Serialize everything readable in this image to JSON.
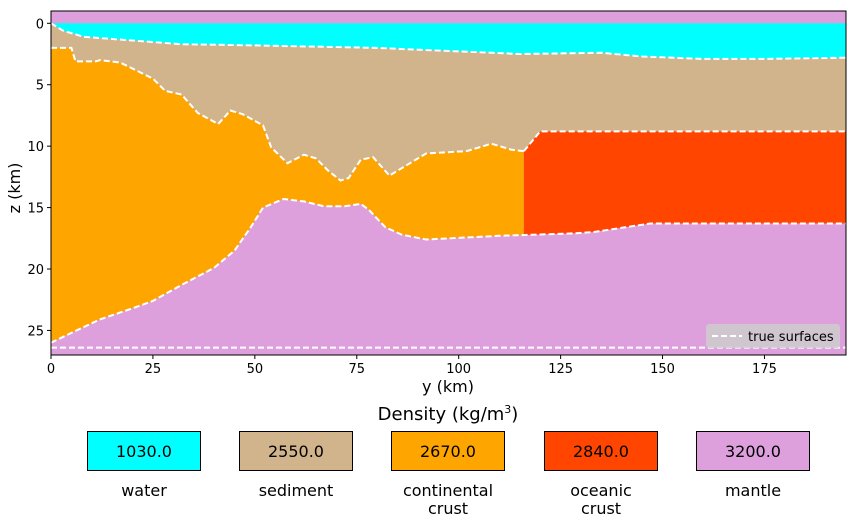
{
  "chart_data": {
    "type": "area",
    "xlabel": "y (km)",
    "ylabel": "z (km)",
    "xlim": [
      0,
      195
    ],
    "ylim": [
      27,
      -1
    ],
    "xticks": [
      0,
      25,
      50,
      75,
      100,
      125,
      150,
      175
    ],
    "yticks": [
      0,
      5,
      10,
      15,
      20,
      25
    ],
    "legend": {
      "label": "true surfaces",
      "position": "lower-right"
    },
    "surfaces": {
      "water_bottom": {
        "x": [
          0,
          3,
          8,
          20,
          32,
          50,
          80,
          115,
          135,
          145,
          160,
          175,
          195
        ],
        "z": [
          0,
          0.6,
          1.1,
          1.4,
          1.7,
          1.8,
          2.0,
          2.5,
          2.4,
          2.7,
          2.9,
          2.9,
          2.8
        ]
      },
      "sediment_bottom": {
        "x": [
          0,
          5,
          6,
          11,
          12,
          17,
          25,
          28,
          32,
          36,
          41,
          44,
          47,
          52,
          54,
          58,
          62,
          65,
          68,
          71,
          73,
          76,
          79,
          83,
          88,
          92,
          102,
          108,
          113,
          116
        ],
        "z": [
          2.0,
          2.0,
          3.1,
          3.1,
          3.0,
          3.2,
          4.5,
          5.5,
          5.8,
          7.3,
          8.2,
          7.1,
          7.4,
          8.3,
          10.1,
          11.4,
          10.7,
          11.0,
          12.0,
          12.8,
          12.6,
          11.1,
          10.9,
          12.4,
          11.4,
          10.6,
          10.4,
          9.8,
          10.3,
          10.4
        ]
      },
      "oceanic_top": {
        "x": [
          116,
          120,
          195
        ],
        "z": [
          10.4,
          8.8,
          8.8
        ]
      },
      "moho": {
        "x": [
          0,
          5,
          12,
          20,
          25,
          32,
          40,
          45,
          49,
          52,
          57,
          62,
          67,
          72,
          76,
          78,
          82,
          86,
          92,
          110,
          128,
          133,
          147,
          195
        ],
        "z": [
          26.0,
          25.2,
          24.1,
          23.2,
          22.6,
          21.3,
          19.9,
          18.5,
          16.6,
          15.0,
          14.3,
          14.5,
          14.9,
          14.9,
          14.7,
          15.2,
          16.6,
          17.2,
          17.6,
          17.3,
          17.1,
          17.0,
          16.3,
          16.3
        ]
      },
      "bottom": {
        "x": [
          0,
          195
        ],
        "z": [
          26.4,
          26.4
        ]
      },
      "continental_oceanic_boundary_y": 116
    },
    "colorbar_title": "Density (kg/m³)",
    "layers": [
      {
        "name": "water",
        "density": "1030.0",
        "color": "#00ffff"
      },
      {
        "name": "sediment",
        "density": "2550.0",
        "color": "#d2b48c"
      },
      {
        "name": "continental\ncrust",
        "density": "2670.0",
        "color": "#ffa500"
      },
      {
        "name": "oceanic\ncrust",
        "density": "2840.0",
        "color": "#ff4500"
      },
      {
        "name": "mantle",
        "density": "3200.0",
        "color": "#dda0dd"
      }
    ]
  }
}
